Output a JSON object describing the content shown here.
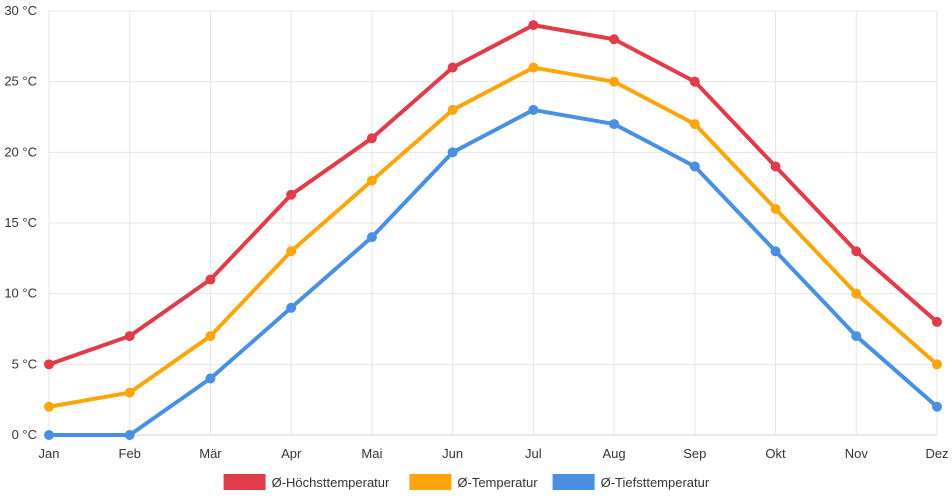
{
  "chart_data": {
    "type": "line",
    "title": "",
    "xlabel": "",
    "ylabel": "",
    "categories": [
      "Jan",
      "Feb",
      "Mär",
      "Apr",
      "Mai",
      "Jun",
      "Jul",
      "Aug",
      "Sep",
      "Okt",
      "Nov",
      "Dez"
    ],
    "ylim": [
      0,
      30
    ],
    "y_ticks": [
      0,
      5,
      10,
      15,
      20,
      25,
      30
    ],
    "y_unit": " °C",
    "grid": true,
    "legend_position": "bottom",
    "series": [
      {
        "name": "Ø-Höchsttemperatur",
        "color": "#e03c4a",
        "values": [
          5,
          7,
          11,
          17,
          21,
          26,
          29,
          28,
          25,
          19,
          13,
          8
        ]
      },
      {
        "name": "Ø-Temperatur",
        "color": "#fca60b",
        "values": [
          2,
          3,
          7,
          13,
          18,
          23,
          26,
          25,
          22,
          16,
          10,
          5
        ]
      },
      {
        "name": "Ø-Tiefsttemperatur",
        "color": "#4a90e2",
        "values": [
          0,
          0,
          4,
          9,
          14,
          20,
          23,
          22,
          19,
          13,
          7,
          2
        ]
      }
    ]
  }
}
